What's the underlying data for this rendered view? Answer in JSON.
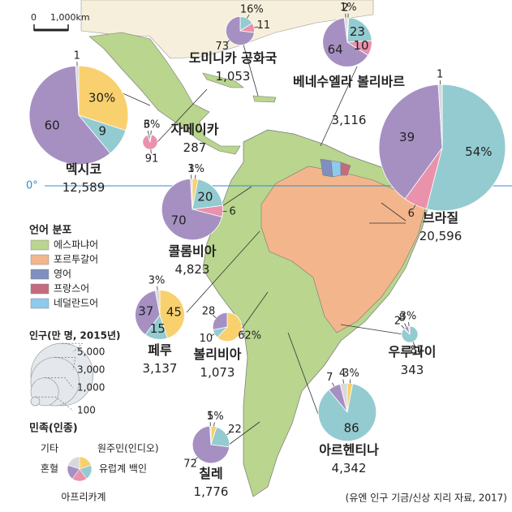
{
  "scale": {
    "zero": "0",
    "distance": "1,000km"
  },
  "equator": "0°",
  "language_legend": {
    "title": "언어 분포",
    "items": [
      {
        "label": "에스파냐어",
        "color": "#b9d58e"
      },
      {
        "label": "포르투갈어",
        "color": "#f3b68c"
      },
      {
        "label": "영어",
        "color": "#7f8fbf"
      },
      {
        "label": "프랑스어",
        "color": "#c46b7e"
      },
      {
        "label": "네덜란드어",
        "color": "#8fc9ec"
      }
    ]
  },
  "population_legend": {
    "title": "인구(만 명, 2015년)",
    "sizes": [
      {
        "value": 5000,
        "label": "5,000"
      },
      {
        "value": 3000,
        "label": "3,000"
      },
      {
        "value": 1000,
        "label": "1,000"
      },
      100
    ]
  },
  "ethnicity_legend": {
    "title": "민족(인종)",
    "groups": [
      {
        "label": "원주민(인디오)",
        "color": "#f8d06e"
      },
      {
        "label": "유럽계 백인",
        "color": "#93cbd1"
      },
      {
        "label": "아프리카계",
        "color": "#ea91ab"
      },
      {
        "label": "혼혈",
        "color": "#a690c2"
      },
      {
        "label": "기타",
        "color": "#d9d9d9"
      }
    ]
  },
  "countries": [
    {
      "name": "멕시코",
      "population": {
        "value": 12589,
        "label": "12,589"
      },
      "shares": [
        30,
        9,
        null,
        60,
        1
      ],
      "share_labels": [
        "30%",
        null,
        null,
        null,
        null
      ]
    },
    {
      "name": "도미니카 공화국",
      "population": {
        "value": 1053,
        "label": "1,053"
      },
      "shares": [
        null,
        16,
        11,
        73,
        null
      ],
      "share_labels": [
        null,
        "16%",
        null,
        null,
        null
      ]
    },
    {
      "name": "베네수엘라 볼리바르",
      "population": {
        "value": 3116,
        "label": "3,116"
      },
      "shares": [
        1,
        23,
        10,
        64,
        2
      ],
      "share_labels": [
        "1%",
        null,
        null,
        null,
        null
      ]
    },
    {
      "name": "자메이카",
      "population": {
        "value": 287,
        "label": "287"
      },
      "shares": [
        null,
        3,
        91,
        6,
        null
      ],
      "share_labels": [
        null,
        "3%",
        null,
        null,
        null
      ]
    },
    {
      "name": "브라질",
      "population": {
        "value": 20596,
        "label": "20,596"
      },
      "shares": [
        null,
        54,
        6,
        39,
        1
      ],
      "share_labels": [
        null,
        "54%",
        null,
        null,
        null
      ]
    },
    {
      "name": "콜롬비아",
      "population": {
        "value": 4823,
        "label": "4,823"
      },
      "shares": [
        3,
        20,
        6,
        70,
        1
      ],
      "share_labels": [
        "3%",
        null,
        null,
        null,
        null
      ]
    },
    {
      "name": "페루",
      "population": {
        "value": 3137,
        "label": "3,137"
      },
      "shares": [
        45,
        15,
        null,
        37,
        3
      ],
      "share_labels": [
        null,
        null,
        null,
        null,
        "3%"
      ]
    },
    {
      "name": "볼리비아",
      "population": {
        "value": 1073,
        "label": "1,073"
      },
      "shares": [
        62,
        10,
        null,
        28,
        null
      ],
      "share_labels": [
        "62%",
        null,
        null,
        null,
        null
      ]
    },
    {
      "name": "우루과이",
      "population": {
        "value": 343,
        "label": "343"
      },
      "shares": [
        null,
        87,
        2,
        8,
        3
      ],
      "share_labels": [
        null,
        null,
        null,
        null,
        "3%"
      ]
    },
    {
      "name": "아르헨티나",
      "population": {
        "value": 4342,
        "label": "4,342"
      },
      "shares": [
        3,
        86,
        null,
        7,
        4
      ],
      "share_labels": [
        "3%",
        null,
        null,
        null,
        null
      ]
    },
    {
      "name": "칠레",
      "population": {
        "value": 1776,
        "label": "1,776"
      },
      "shares": [
        5,
        22,
        null,
        72,
        1
      ],
      "share_labels": [
        "5%",
        null,
        null,
        null,
        null
      ]
    }
  ],
  "source": "(유엔 인구 기금/신상 지리 자료, 2017)"
}
